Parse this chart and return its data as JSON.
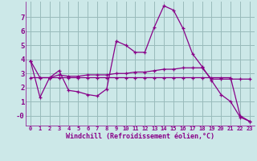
{
  "title": "",
  "xlabel": "Windchill (Refroidissement éolien,°C)",
  "bg_color": "#cce8e8",
  "line_color": "#880088",
  "grid_color": "#99bbbb",
  "xlim": [
    -0.5,
    23.5
  ],
  "ylim": [
    -0.7,
    8.1
  ],
  "yticks": [
    0,
    1,
    2,
    3,
    4,
    5,
    6,
    7
  ],
  "ytick_labels": [
    "-0",
    "1",
    "2",
    "3",
    "4",
    "5",
    "6",
    "7"
  ],
  "xticks": [
    0,
    1,
    2,
    3,
    4,
    5,
    6,
    7,
    8,
    9,
    10,
    11,
    12,
    13,
    14,
    15,
    16,
    17,
    18,
    19,
    20,
    21,
    22,
    23
  ],
  "series": [
    [
      3.9,
      1.3,
      2.7,
      3.2,
      1.8,
      1.7,
      1.5,
      1.4,
      1.9,
      5.3,
      5.0,
      4.5,
      4.5,
      6.3,
      7.8,
      7.5,
      6.2,
      4.4,
      3.5,
      2.5,
      1.5,
      1.0,
      -0.1,
      -0.4
    ],
    [
      2.7,
      2.7,
      2.7,
      2.9,
      2.8,
      2.8,
      2.9,
      2.9,
      2.9,
      3.0,
      3.0,
      3.1,
      3.1,
      3.2,
      3.3,
      3.3,
      3.4,
      3.4,
      3.4,
      2.6,
      2.6,
      2.6,
      2.6,
      2.6
    ],
    [
      3.9,
      2.7,
      2.7,
      2.7,
      2.7,
      2.7,
      2.7,
      2.7,
      2.7,
      2.7,
      2.7,
      2.7,
      2.7,
      2.7,
      2.7,
      2.7,
      2.7,
      2.7,
      2.7,
      2.7,
      2.7,
      2.7,
      0.0,
      -0.4
    ]
  ]
}
